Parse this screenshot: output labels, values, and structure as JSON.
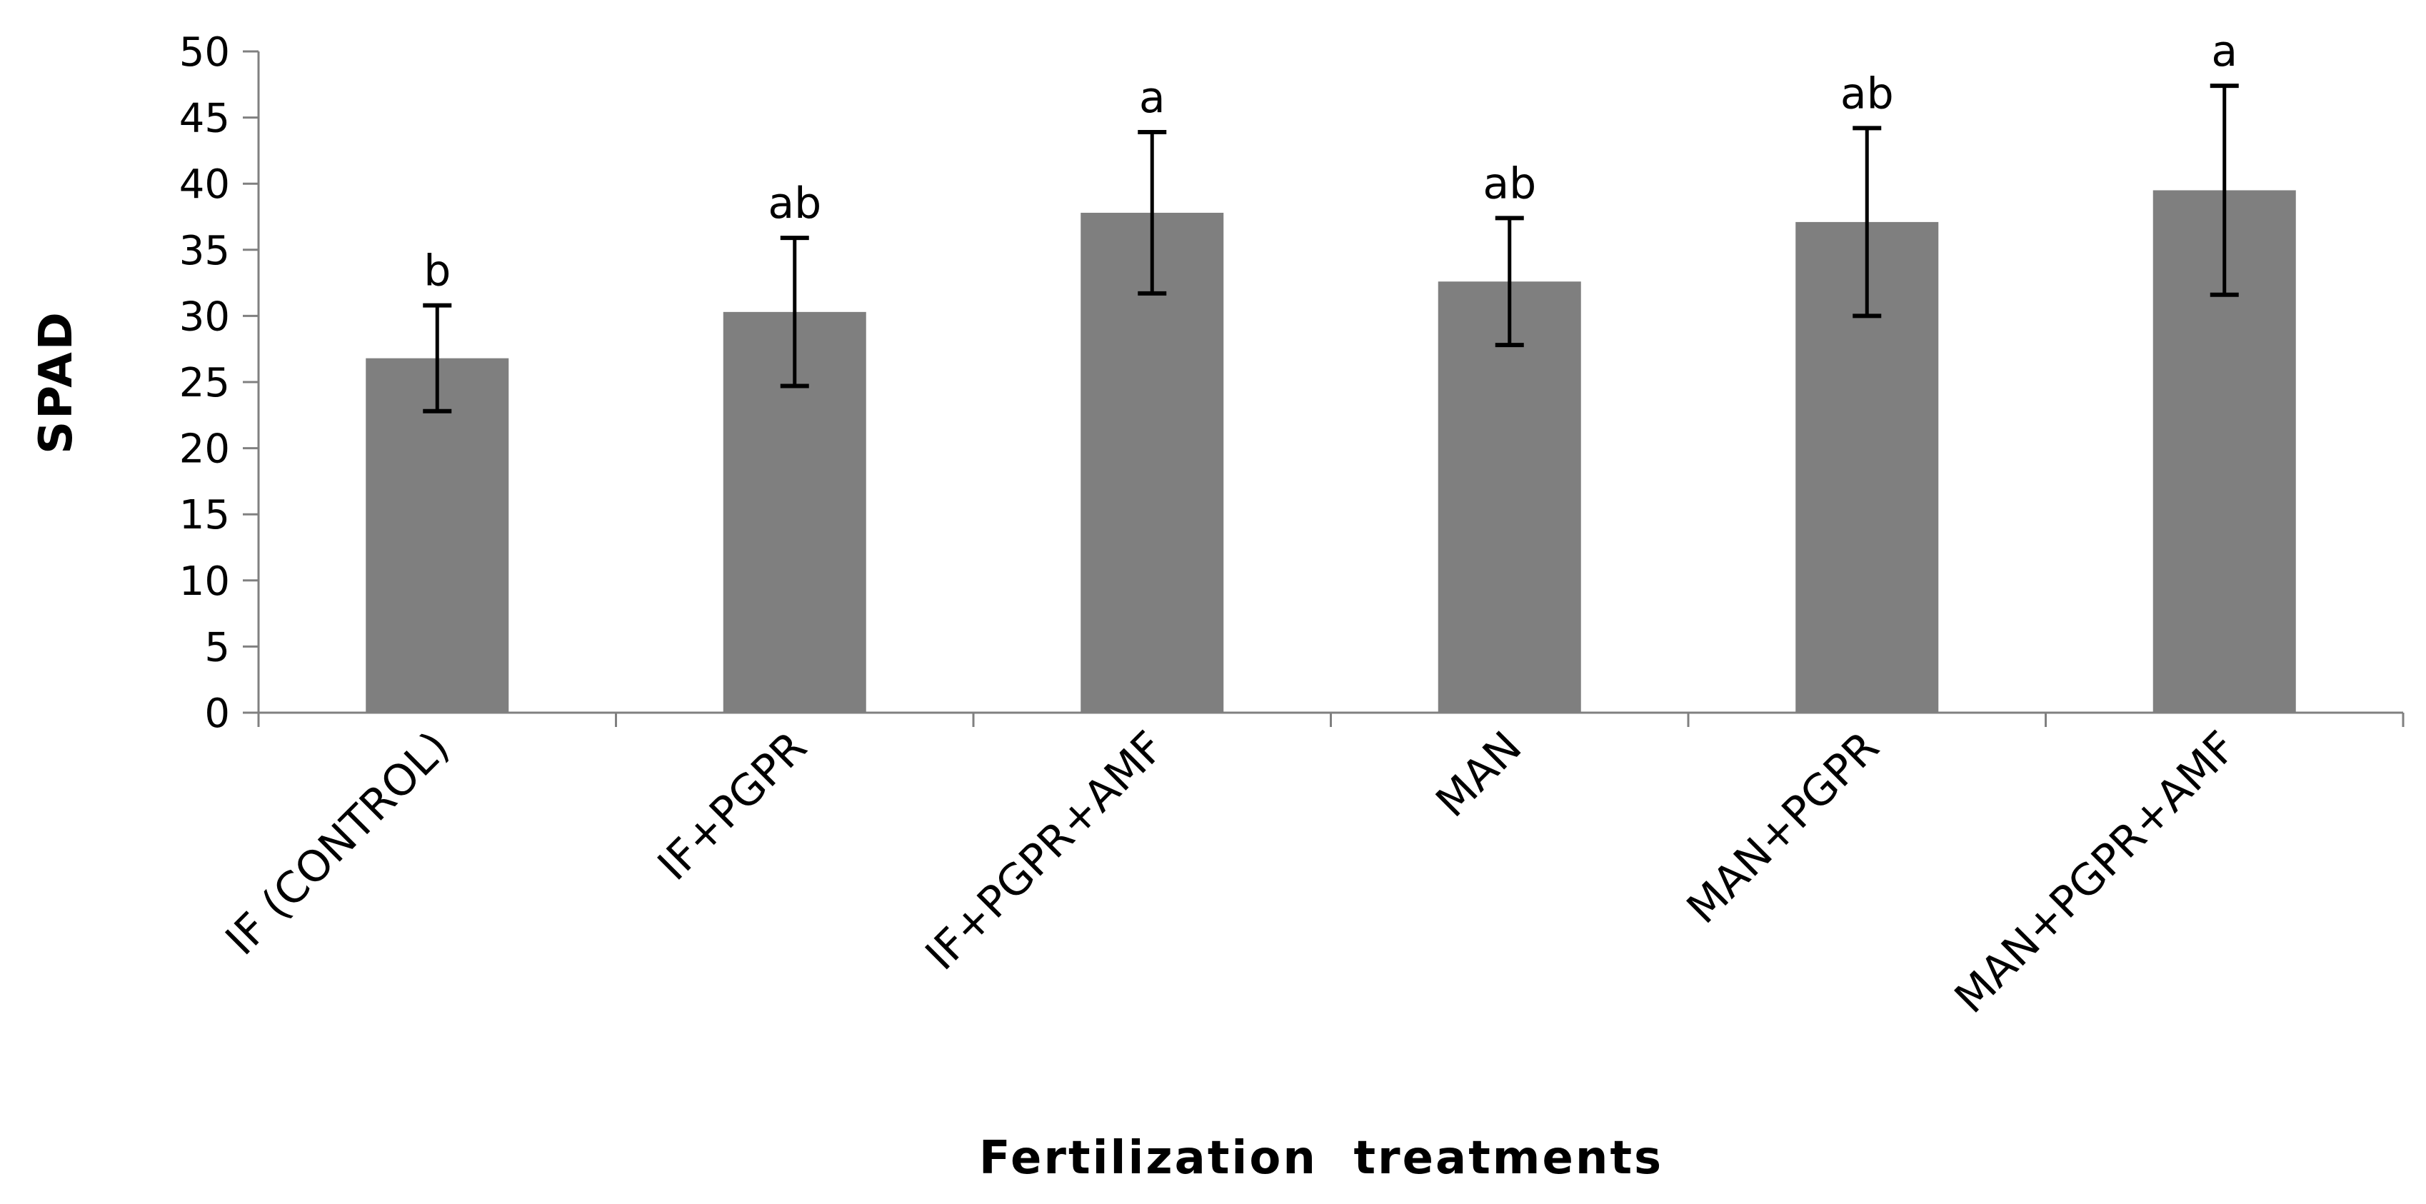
{
  "chart_data": {
    "type": "bar",
    "title": "",
    "xlabel": "Fertilization  treatments",
    "ylabel": "SPAD",
    "ylim": [
      0,
      50
    ],
    "yticks": [
      "0",
      "5",
      "10",
      "15",
      "20",
      "25",
      "30",
      "35",
      "40",
      "45",
      "50"
    ],
    "grid": false,
    "categories": [
      "IF (CONTROL)",
      "IF+PGPR",
      "IF+PGPR+AMF",
      "MAN",
      "MAN+PGPR",
      "MAN+PGPR+AMF"
    ],
    "series": [
      {
        "name": "SPAD",
        "values": [
          26.8,
          30.3,
          37.8,
          32.6,
          37.1,
          39.5
        ],
        "error": [
          4.0,
          5.6,
          6.1,
          4.8,
          7.1,
          7.9
        ],
        "significance": [
          "b",
          "ab",
          "a",
          "ab",
          "ab",
          "a"
        ],
        "color": "#7f7f7f"
      }
    ]
  }
}
